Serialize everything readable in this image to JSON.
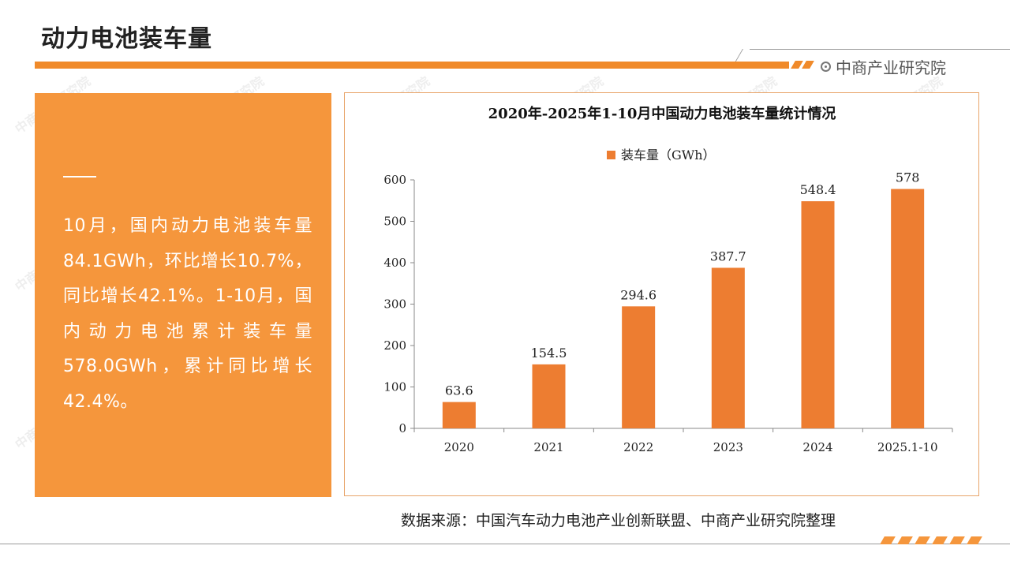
{
  "header": {
    "title": "动力电池装车量",
    "brand": "中商产业研究院"
  },
  "summary": {
    "text": "10月，国内动力电池装车量84.1GWh，环比增长10.7%，同比增长42.1%。1-10月，国内动力电池累计装车量578.0GWh，累计同比增长42.4%。"
  },
  "source": "数据来源：中国汽车动力电池产业创新联盟、中商产业研究院整理",
  "watermark": "中商产业研究院",
  "colors": {
    "accent": "#f08a2a",
    "panel": "#f5963c",
    "bar": "#ed7d31"
  },
  "chart_data": {
    "type": "bar",
    "title": "2020年-2025年1-10月中国动力电池装车量统计情况",
    "categories": [
      "2020",
      "2021",
      "2022",
      "2023",
      "2024",
      "2025.1-10"
    ],
    "series": [
      {
        "name": "装车量（GWh）",
        "values": [
          63.6,
          154.5,
          294.6,
          387.7,
          548.4,
          578
        ]
      }
    ],
    "value_labels": [
      "63.6",
      "154.5",
      "294.6",
      "387.7",
      "548.4",
      "578"
    ],
    "y_ticks": [
      0,
      100,
      200,
      300,
      400,
      500,
      600
    ],
    "ylim": [
      0,
      600
    ],
    "grid": false,
    "legend_position": "top-center"
  }
}
